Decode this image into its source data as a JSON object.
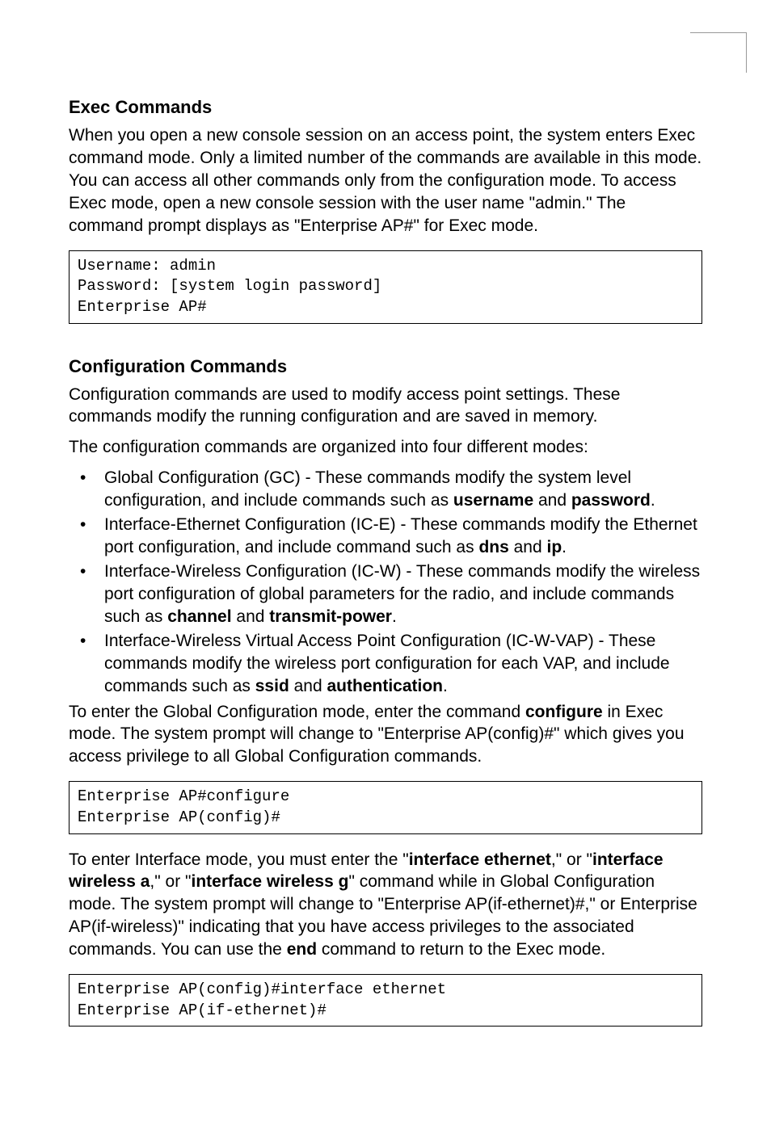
{
  "section1": {
    "title": "Exec Commands",
    "paragraph": "When you open a new console session on an access point, the system enters Exec command mode. Only a limited number of the commands are available in this mode. You can access all other commands only from the configuration mode. To access Exec mode, open a new console session with the user name \"admin.\" The command prompt displays as \"Enterprise AP#\" for Exec mode.",
    "code": "Username: admin\nPassword: [system login password]\nEnterprise AP#"
  },
  "section2": {
    "title": "Configuration Commands",
    "paragraph1": "Configuration commands are used to modify access point settings. These commands modify the running configuration and are saved in memory.",
    "paragraph2": "The configuration commands are organized into four different modes:",
    "bullets": {
      "b1": {
        "pre": "Global Configuration (GC) - These commands modify the system level configuration, and include commands such as ",
        "cmd1": "username",
        "mid": " and ",
        "cmd2": "password",
        "post": "."
      },
      "b2": {
        "pre": "Interface-Ethernet Configuration (IC-E) - These commands modify the Ethernet port configuration, and include command such as ",
        "cmd1": "dns",
        "mid": " and ",
        "cmd2": "ip",
        "post": "."
      },
      "b3": {
        "pre": "Interface-Wireless Configuration (IC-W) - These commands modify the wireless port configuration of global parameters for the radio, and include commands such as ",
        "cmd1": "channel",
        "mid": " and ",
        "cmd2": "transmit-power",
        "post": "."
      },
      "b4": {
        "pre": "Interface-Wireless Virtual Access Point Configuration (IC-W-VAP) - These commands modify the wireless port configuration for each VAP, and include commands such as ",
        "cmd1": "ssid",
        "mid": " and ",
        "cmd2": "authentication",
        "post": "."
      }
    },
    "paragraph3": {
      "pre": "To enter the Global Configuration mode, enter the command ",
      "cmd": "configure",
      "post": " in Exec mode. The system prompt will change to \"Enterprise AP(config)#\" which gives you access privilege to all Global Configuration commands."
    },
    "code2": "Enterprise AP#configure\nEnterprise AP(config)#",
    "paragraph4": {
      "t1": "To enter Interface mode, you must enter the \"",
      "c1": "interface ethernet",
      "t2": ",\" or \"",
      "c2": "interface wireless a",
      "t3": ",\" or \"",
      "c3": "interface wireless g",
      "t4": "\" command while in Global Configuration mode. The system prompt will change to \"Enterprise AP(if-ethernet)#,\" or Enterprise AP(if-wireless)\" indicating that you have access privileges to the associated commands. You can use the ",
      "cend": "end",
      "t5": " command to return to the Exec mode."
    },
    "code3": "Enterprise AP(config)#interface ethernet\nEnterprise AP(if-ethernet)#"
  }
}
